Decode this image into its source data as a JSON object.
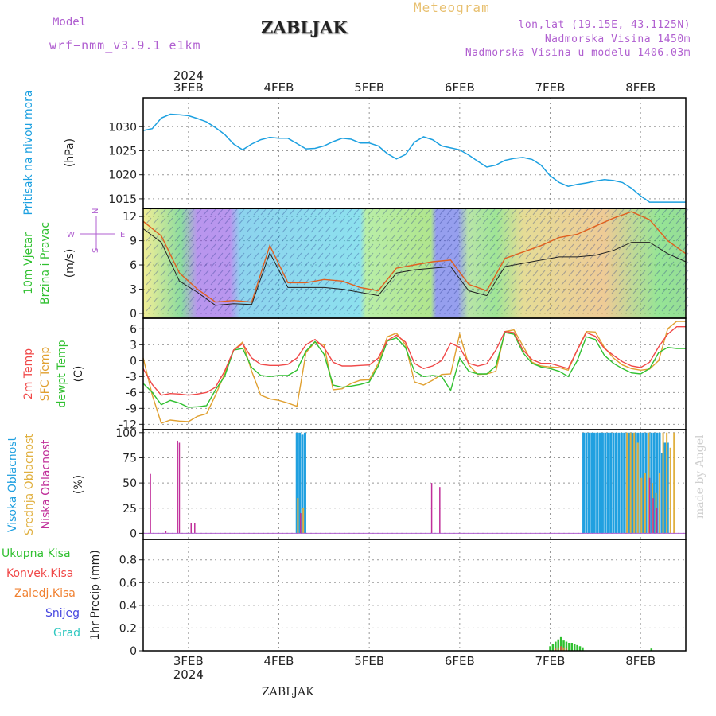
{
  "header": {
    "model_label": "Model",
    "model_name": "wrf−nmm_v3.9.1  e1km",
    "title": "ZABLJAK",
    "meteogram": "Meteogram",
    "coords": "lon,lat (19.15E, 43.1125N)",
    "elevation": "Nadmorska Visina 1450m",
    "model_elevation": "Nadmorska Visina u modelu 1406.03m"
  },
  "footer": {
    "station": "ZABLJAK",
    "credit": "made by Angel"
  },
  "time_axis": {
    "year": "2024",
    "day_labels": [
      "3FEB",
      "4FEB",
      "5FEB",
      "6FEB",
      "7FEB",
      "8FEB"
    ],
    "range_days": [
      -0.5,
      5.5
    ]
  },
  "colors": {
    "pressure": "#1ca0e0",
    "temp2m": "#f04848",
    "sfc": "#e0a030",
    "dewpt": "#30c030",
    "high_cloud": "#20a0e0",
    "mid_cloud": "#e0b040",
    "low_cloud": "#c0309a",
    "total": "#30c030",
    "convective": "#f04848",
    "stratiform": "#f08030",
    "snow": "#4848e0",
    "hail": "#30c8c0",
    "wind_label": "#30c030",
    "wind_speed": "#222222",
    "wind_gust": "#e06020"
  },
  "panels": {
    "pressure": {
      "label1": "Pritisak na nivou mora",
      "unit": "(hPa)"
    },
    "wind": {
      "label1": "10m Vjetar",
      "label2": "Brzina i Pravac",
      "unit": "(m/s)",
      "compass_n": "N",
      "compass_s": "S",
      "compass_w": "W",
      "compass_e": "E"
    },
    "temp": {
      "label1": "2m Temp",
      "label2": "SFC Temp",
      "label3": "dewpt Temp",
      "unit": "(C)"
    },
    "cloud": {
      "label1": "Visoka Oblacnost",
      "label2": "Srednja Oblacnost",
      "label3": "Niska Oblacnost",
      "unit": "(%)"
    },
    "precip": {
      "label1": "Ukupna Kisa",
      "label2": "Konvek.Kisa",
      "label3": "Zaledj.Kisa",
      "label4": "Snijeg",
      "label5": "Grad",
      "unit": "1hr Precip (mm)"
    }
  },
  "chart_data": [
    {
      "type": "line",
      "title": "Pritisak na nivou mora",
      "ylabel": "(hPa)",
      "ylim": [
        1013,
        1036
      ],
      "yticks": [
        1015,
        1020,
        1025,
        1030
      ],
      "x": [
        -0.5,
        -0.4,
        -0.3,
        -0.2,
        -0.1,
        0.0,
        0.1,
        0.2,
        0.3,
        0.4,
        0.5,
        0.6,
        0.7,
        0.8,
        0.9,
        1.0,
        1.1,
        1.2,
        1.3,
        1.4,
        1.5,
        1.6,
        1.7,
        1.8,
        1.9,
        2.0,
        2.1,
        2.2,
        2.3,
        2.4,
        2.5,
        2.6,
        2.7,
        2.8,
        2.9,
        3.0,
        3.1,
        3.2,
        3.3,
        3.4,
        3.5,
        3.6,
        3.7,
        3.8,
        3.9,
        4.0,
        4.1,
        4.2,
        4.3,
        4.4,
        4.5,
        4.6,
        4.7,
        4.8,
        4.9,
        5.0,
        5.1,
        5.2,
        5.3,
        5.4,
        5.5
      ],
      "series": [
        {
          "name": "Pritisak na nivou mora",
          "values": [
            1029.2,
            1029.6,
            1031.8,
            1032.6,
            1032.5,
            1032.3,
            1031.7,
            1031.0,
            1029.8,
            1028.4,
            1026.4,
            1025.2,
            1026.4,
            1027.3,
            1027.8,
            1027.6,
            1027.6,
            1026.5,
            1025.4,
            1025.5,
            1026.0,
            1026.9,
            1027.6,
            1027.4,
            1026.6,
            1026.6,
            1026.0,
            1024.4,
            1023.3,
            1024.2,
            1026.8,
            1027.9,
            1027.3,
            1026.0,
            1025.6,
            1025.2,
            1024.1,
            1022.8,
            1021.6,
            1022.0,
            1023.0,
            1023.4,
            1023.6,
            1023.2,
            1022.0,
            1019.8,
            1018.4,
            1017.6,
            1018.0,
            1018.3,
            1018.7,
            1019.0,
            1018.8,
            1018.4,
            1017.2,
            1015.6,
            1014.3,
            1014.3,
            1014.3,
            1014.3,
            1014.3
          ]
        }
      ]
    },
    {
      "type": "line",
      "title": "10m Vjetar Brzina i Pravac",
      "ylabel": "(m/s)",
      "ylim": [
        -0.6,
        13.0
      ],
      "yticks": [
        0,
        3,
        6,
        9,
        12
      ],
      "x": [
        -0.5,
        -0.3,
        -0.1,
        0.1,
        0.3,
        0.5,
        0.7,
        0.9,
        1.1,
        1.3,
        1.5,
        1.7,
        1.9,
        2.1,
        2.3,
        2.5,
        2.7,
        2.9,
        3.1,
        3.3,
        3.5,
        3.7,
        3.9,
        4.1,
        4.3,
        4.5,
        4.7,
        4.9,
        5.1,
        5.3,
        5.5
      ],
      "series": [
        {
          "name": "speed",
          "values": [
            10.5,
            8.8,
            4.0,
            2.6,
            1.0,
            1.2,
            1.1,
            7.5,
            3.2,
            3.2,
            3.2,
            3.0,
            2.6,
            2.2,
            5.0,
            5.4,
            5.6,
            5.8,
            2.8,
            2.2,
            5.8,
            6.2,
            6.6,
            7.0,
            7.0,
            7.2,
            7.8,
            8.8,
            8.8,
            7.4,
            6.4
          ]
        },
        {
          "name": "gust",
          "values": [
            11.4,
            9.6,
            5.0,
            3.0,
            1.4,
            1.6,
            1.4,
            8.4,
            3.8,
            3.8,
            4.2,
            4.0,
            3.2,
            2.8,
            5.6,
            6.0,
            6.4,
            6.6,
            3.6,
            2.8,
            6.8,
            7.6,
            8.4,
            9.4,
            9.8,
            10.8,
            11.8,
            12.6,
            11.6,
            9.0,
            7.4
          ]
        }
      ]
    },
    {
      "type": "line",
      "title": "2m Temp / SFC Temp / dewpt Temp",
      "ylabel": "(C)",
      "ylim": [
        -13,
        8
      ],
      "yticks": [
        -12,
        -9,
        -6,
        -3,
        0,
        3,
        6
      ],
      "x": [
        -0.5,
        -0.4,
        -0.3,
        -0.2,
        -0.1,
        0.0,
        0.1,
        0.2,
        0.3,
        0.4,
        0.5,
        0.6,
        0.7,
        0.8,
        0.9,
        1.0,
        1.1,
        1.2,
        1.3,
        1.4,
        1.5,
        1.6,
        1.7,
        1.8,
        1.9,
        2.0,
        2.1,
        2.2,
        2.3,
        2.4,
        2.5,
        2.6,
        2.7,
        2.8,
        2.9,
        3.0,
        3.1,
        3.2,
        3.3,
        3.4,
        3.5,
        3.6,
        3.7,
        3.8,
        3.9,
        4.0,
        4.1,
        4.2,
        4.3,
        4.4,
        4.5,
        4.6,
        4.7,
        4.8,
        4.9,
        5.0,
        5.1,
        5.2,
        5.3,
        5.4,
        5.5
      ],
      "series": [
        {
          "name": "2m Temp",
          "values": [
            -1.5,
            -4.5,
            -6.5,
            -6.2,
            -6.3,
            -6.5,
            -6.3,
            -6.0,
            -5.0,
            -2.0,
            2.0,
            3.2,
            0.5,
            -0.7,
            -0.9,
            -0.9,
            -0.7,
            0.5,
            3.0,
            4.0,
            2.5,
            -0.3,
            -1.0,
            -1.0,
            -0.9,
            -0.8,
            0.5,
            3.8,
            4.8,
            3.5,
            -0.5,
            -1.5,
            -1.0,
            0.0,
            3.3,
            2.5,
            -0.5,
            -1.0,
            -0.6,
            2.0,
            5.5,
            5.3,
            2.0,
            0.2,
            -0.5,
            -0.5,
            -1.0,
            -1.5,
            2.0,
            5.3,
            4.6,
            2.3,
            1.0,
            -0.2,
            -1.0,
            -1.3,
            -0.3,
            2.6,
            5.0,
            6.4,
            6.4
          ]
        },
        {
          "name": "SFC Temp",
          "values": [
            0.5,
            -6.5,
            -11.8,
            -11.2,
            -11.4,
            -11.5,
            -10.5,
            -10.0,
            -6.5,
            -2.5,
            2.0,
            3.5,
            -2.0,
            -6.5,
            -7.2,
            -7.5,
            -8.0,
            -8.6,
            1.5,
            3.5,
            3.0,
            -5.5,
            -5.3,
            -4.3,
            -3.7,
            -3.6,
            -0.5,
            4.5,
            5.2,
            3.0,
            -4.0,
            -4.6,
            -3.7,
            -2.6,
            -2.5,
            5.0,
            -0.8,
            -2.6,
            -2.5,
            -2.0,
            5.5,
            5.8,
            2.8,
            -0.3,
            -1.0,
            -1.2,
            -1.3,
            -1.8,
            2.0,
            5.5,
            5.4,
            2.5,
            0.5,
            -0.8,
            -1.5,
            -1.8,
            -1.6,
            0.0,
            6.0,
            7.4,
            7.4
          ]
        },
        {
          "name": "dewpt Temp",
          "values": [
            -4.3,
            -6.0,
            -8.3,
            -7.5,
            -8.0,
            -8.8,
            -8.7,
            -8.5,
            -5.5,
            -3.0,
            2.0,
            2.3,
            -1.3,
            -2.8,
            -3.0,
            -2.8,
            -2.8,
            -1.8,
            1.8,
            3.6,
            1.2,
            -4.6,
            -5.0,
            -4.8,
            -4.5,
            -4.0,
            -1.0,
            3.7,
            4.3,
            2.5,
            -2.0,
            -3.0,
            -2.8,
            -3.0,
            -5.6,
            0.5,
            -2.0,
            -2.5,
            -2.5,
            -1.0,
            5.3,
            5.0,
            1.5,
            -0.5,
            -1.2,
            -1.5,
            -2.0,
            -3.0,
            0.0,
            4.5,
            4.0,
            1.0,
            -0.5,
            -1.5,
            -2.3,
            -2.5,
            -1.5,
            1.5,
            2.5,
            2.3,
            2.3
          ]
        }
      ]
    },
    {
      "type": "bar",
      "title": "Visoka / Srednja / Niska Oblacnost",
      "ylabel": "(%)",
      "ylim": [
        -6,
        103
      ],
      "yticks": [
        0,
        25,
        50,
        75,
        100
      ],
      "series": [
        {
          "name": "Visoka Oblacnost",
          "x": [
            1.2,
            1.23,
            1.26,
            1.29,
            4.37,
            4.4,
            4.43,
            4.46,
            4.49,
            4.52,
            4.55,
            4.58,
            4.61,
            4.64,
            4.67,
            4.7,
            4.73,
            4.76,
            4.79,
            4.82,
            4.85,
            4.88,
            4.91,
            4.94,
            4.97,
            5.0,
            5.03,
            5.06,
            5.09,
            5.12,
            5.15,
            5.18,
            5.21,
            5.24,
            5.27,
            5.3
          ],
          "values": [
            100,
            100,
            98,
            100,
            100,
            100,
            100,
            100,
            100,
            100,
            100,
            100,
            100,
            100,
            100,
            100,
            100,
            100,
            100,
            100,
            100,
            100,
            100,
            100,
            100,
            100,
            100,
            100,
            100,
            100,
            100,
            100,
            100,
            80,
            90,
            90
          ]
        },
        {
          "name": "Srednja Oblacnost",
          "x": [
            1.21,
            1.27,
            4.85,
            4.89,
            4.93,
            4.97,
            5.01,
            5.05,
            5.09,
            5.13,
            5.17,
            5.21,
            5.25,
            5.29,
            5.33,
            5.37
          ],
          "values": [
            35,
            25,
            100,
            100,
            100,
            90,
            55,
            60,
            100,
            50,
            40,
            60,
            100,
            100,
            85,
            100
          ]
        },
        {
          "name": "Niska Oblacnost",
          "x": [
            -0.42,
            -0.25,
            -0.12,
            -0.1,
            0.03,
            0.07,
            1.24,
            2.69,
            2.78,
            5.1,
            5.14,
            5.18
          ],
          "values": [
            59,
            2,
            92,
            90,
            10,
            10,
            20,
            50,
            46,
            55,
            35,
            25
          ]
        }
      ]
    },
    {
      "type": "bar",
      "title": "1hr Precip",
      "ylabel": "(mm)",
      "ylim": [
        0,
        0.98
      ],
      "yticks": [
        0,
        0.2,
        0.4,
        0.6,
        0.8
      ],
      "series": [
        {
          "name": "Ukupna Kisa",
          "x": [
            4.0,
            4.03,
            4.06,
            4.09,
            4.12,
            4.15,
            4.18,
            4.21,
            4.24,
            4.27,
            4.3,
            4.33,
            4.36,
            5.12
          ],
          "values": [
            0.04,
            0.06,
            0.08,
            0.1,
            0.12,
            0.09,
            0.08,
            0.07,
            0.07,
            0.06,
            0.05,
            0.04,
            0.03,
            0.02
          ]
        },
        {
          "name": "Konvek.Kisa",
          "x": [
            4.06,
            4.12,
            4.18
          ],
          "values": [
            0.02,
            0.04,
            0.02
          ]
        },
        {
          "name": "Zaledj.Kisa",
          "x": [
            4.09,
            4.15
          ],
          "values": [
            0.03,
            0.03
          ]
        },
        {
          "name": "Snijeg",
          "x": [],
          "values": []
        },
        {
          "name": "Grad",
          "x": [],
          "values": []
        }
      ]
    }
  ]
}
